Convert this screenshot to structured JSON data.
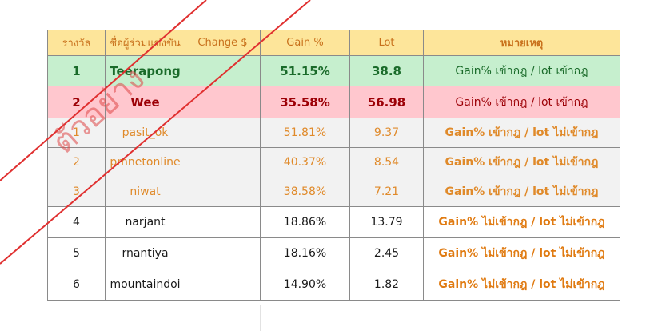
{
  "table": {
    "headers": {
      "rank": "รางวัล",
      "name": "ชื่อผู้ร่วมแข่งขัน",
      "change": "Change $",
      "gain": "Gain %",
      "lot": "Lot",
      "note": "หมายเหตุ"
    },
    "rows": [
      {
        "rank": "1",
        "name": "Teerapong",
        "change": "",
        "gain": "51.15%",
        "lot": "38.8",
        "note": "Gain% เข้ากฎ / lot เข้ากฎ"
      },
      {
        "rank": "2",
        "name": "Wee",
        "change": "",
        "gain": "35.58%",
        "lot": "56.98",
        "note": "Gain% เข้ากฎ / lot เข้ากฎ"
      },
      {
        "rank": "1",
        "name": "pasit_ok",
        "change": "",
        "gain": "51.81%",
        "lot": "9.37",
        "note": "Gain% เข้ากฎ / lot ไม่เข้ากฎ"
      },
      {
        "rank": "2",
        "name": "pmnetonline",
        "change": "",
        "gain": "40.37%",
        "lot": "8.54",
        "note": "Gain% เข้ากฎ / lot ไม่เข้ากฎ"
      },
      {
        "rank": "3",
        "name": "niwat",
        "change": "",
        "gain": "38.58%",
        "lot": "7.21",
        "note": "Gain% เข้ากฎ / lot ไม่เข้ากฎ"
      },
      {
        "rank": "4",
        "name": "narjant",
        "change": "",
        "gain": "18.86%",
        "lot": "13.79",
        "note": "Gain% ไม่เข้ากฎ / lot ไม่เข้ากฎ"
      },
      {
        "rank": "5",
        "name": "rnantiya",
        "change": "",
        "gain": "18.16%",
        "lot": "2.45",
        "note": "Gain% ไม่เข้ากฎ / lot ไม่เข้ากฎ"
      },
      {
        "rank": "6",
        "name": "mountaindoi",
        "change": "",
        "gain": "14.90%",
        "lot": "1.82",
        "note": "Gain% ไม่เข้ากฎ / lot ไม่เข้ากฎ"
      }
    ]
  },
  "watermark": {
    "text": "ตัวอย่าง",
    "color": "#e05a5a"
  },
  "colors": {
    "header_bg": "#fde59a",
    "header_text": "#c8701b",
    "winner_bg": "#c6efce",
    "winner_text": "#1a6b2a",
    "runner_bg": "#ffc7ce",
    "runner_text": "#9c0006",
    "disqualified_bg": "#f2f2f2",
    "disqualified_text": "#e08a2a",
    "slash_line": "#e03030"
  }
}
